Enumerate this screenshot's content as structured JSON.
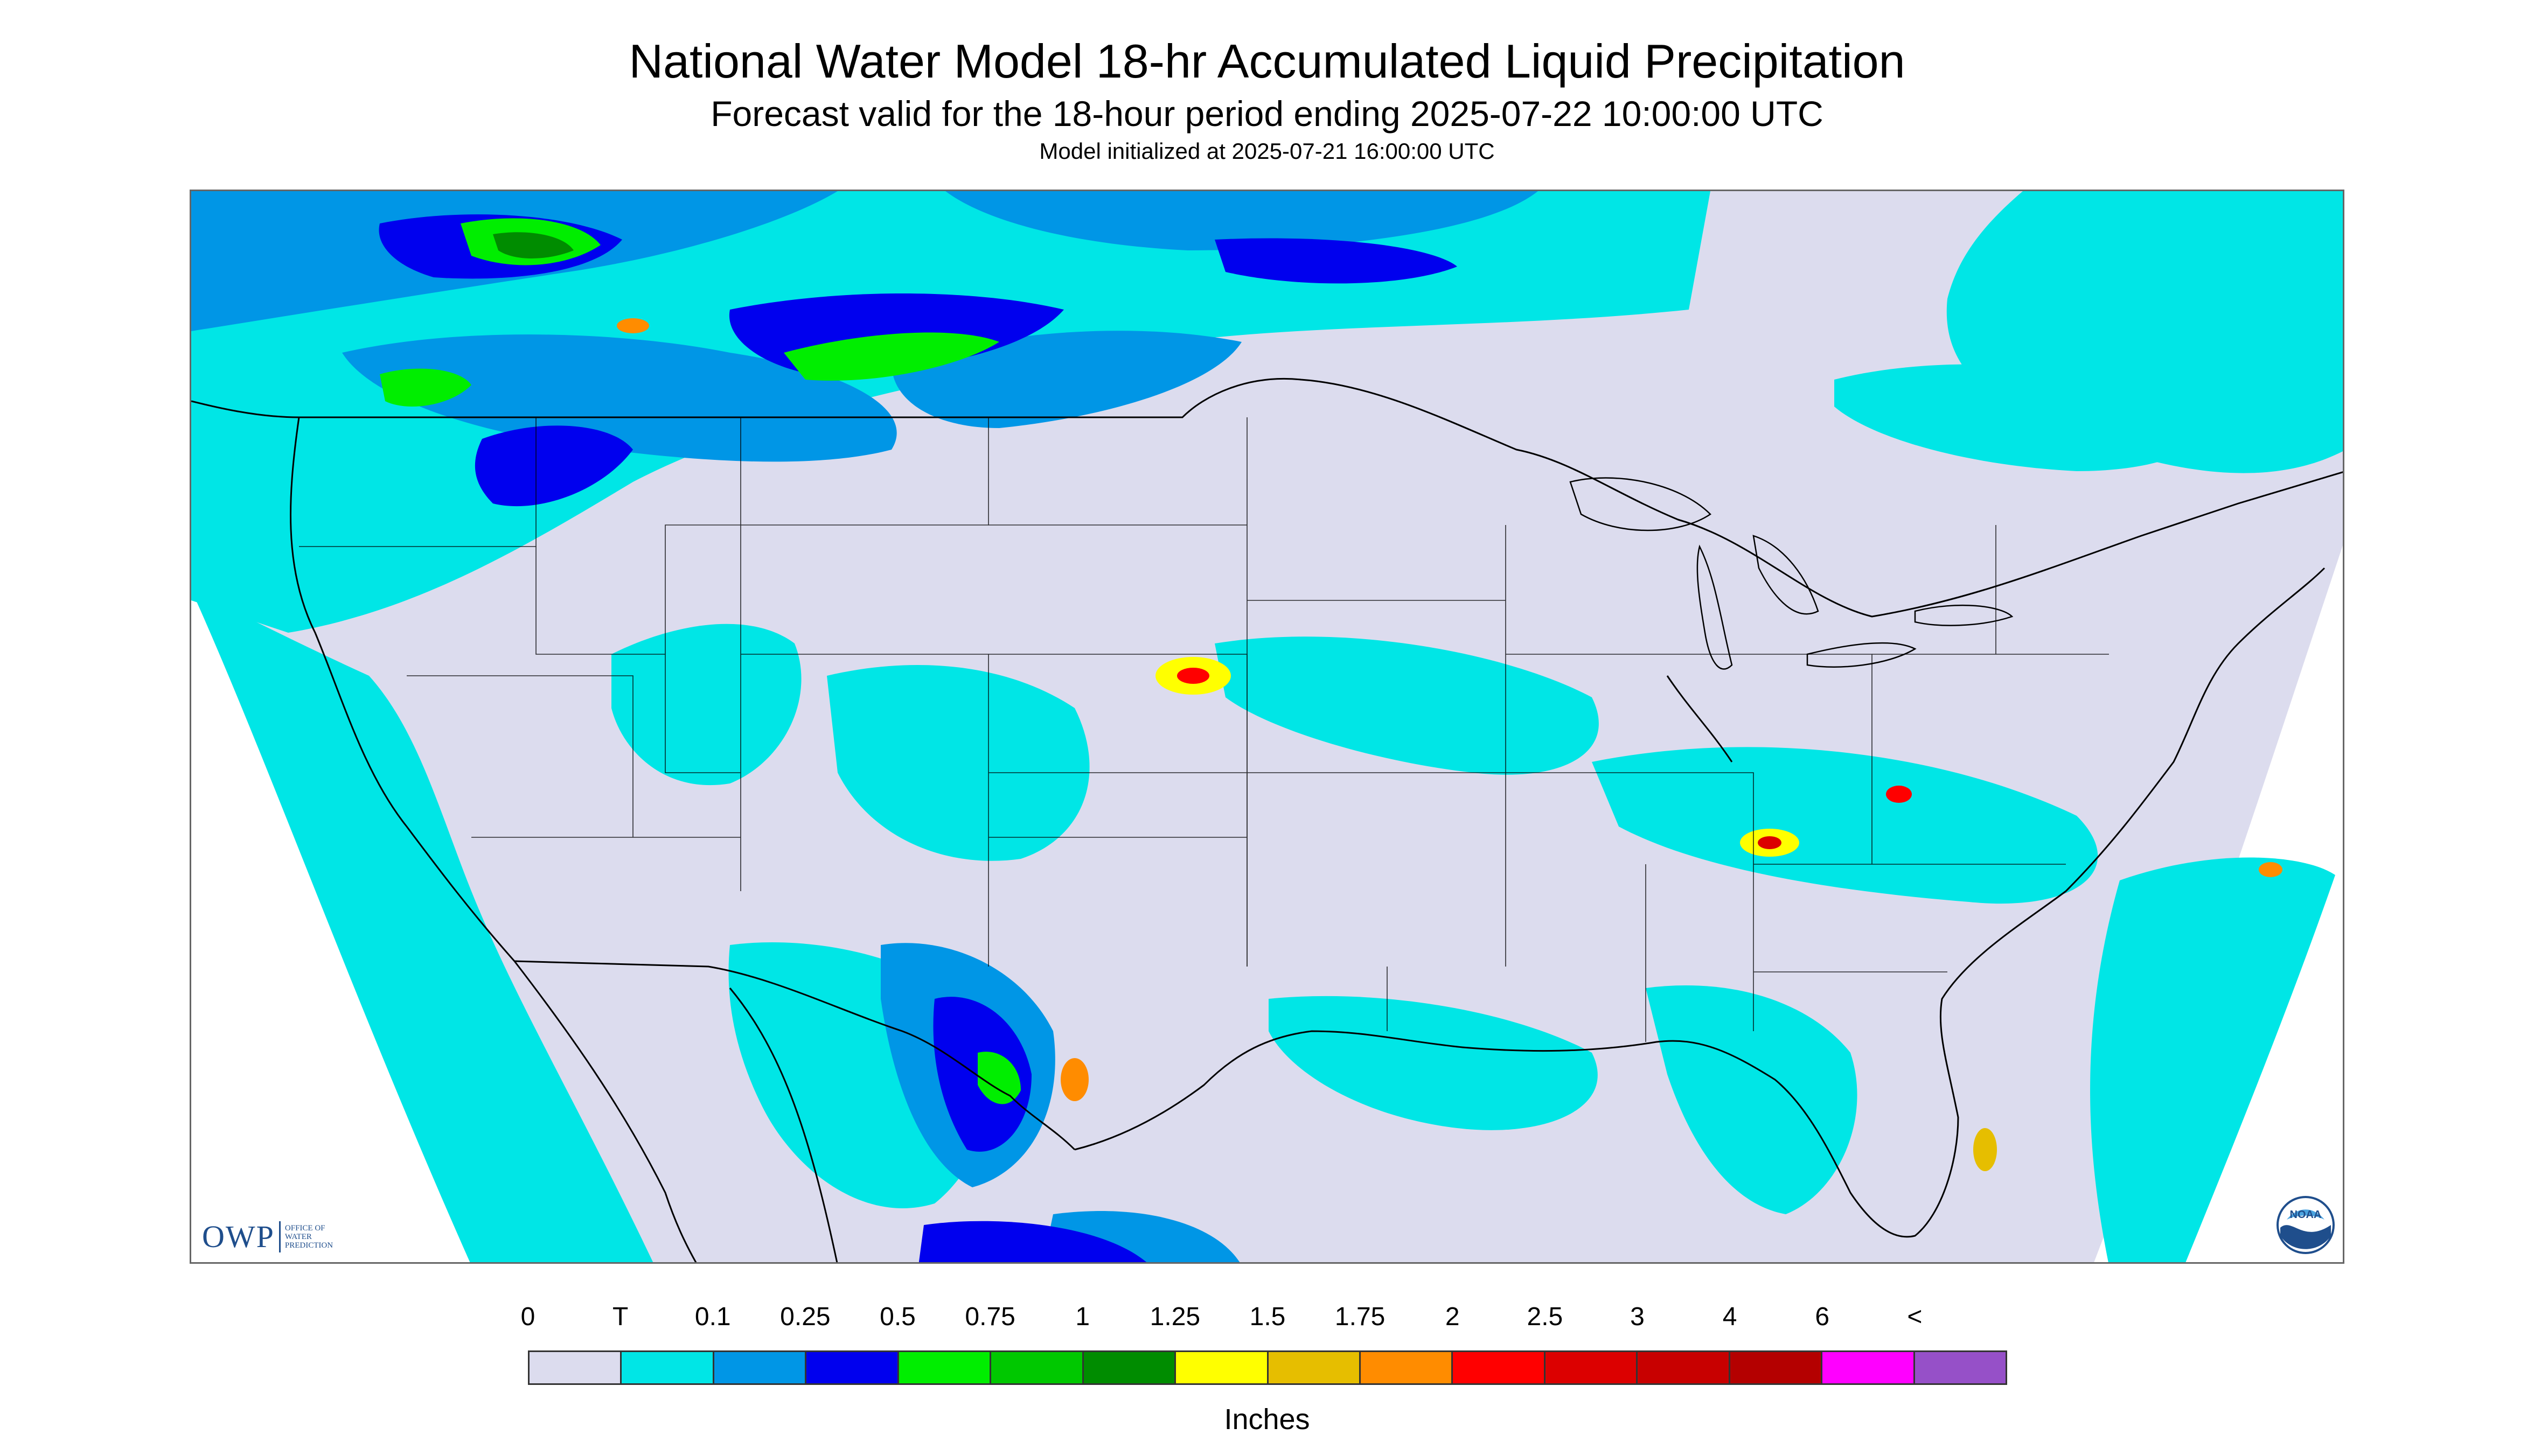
{
  "header": {
    "title": "National Water Model 18-hr Accumulated Liquid Precipitation",
    "subtitle": "Forecast valid for the 18-hour period ending 2025-07-22 10:00:00 UTC",
    "init_line": "Model initialized at 2025-07-21 16:00:00 UTC"
  },
  "map": {
    "region": "Contiguous United States",
    "no_data_color": "#ffffff",
    "background_color": "#dcdcee",
    "boundary_color": "#000000"
  },
  "logos": {
    "owp_text": "OWP",
    "owp_name_lines": [
      "OFFICE OF",
      "WATER",
      "PREDICTION"
    ],
    "noaa_text": "NOAA"
  },
  "legend": {
    "units": "Inches",
    "labels": [
      "0",
      "T",
      "0.1",
      "0.25",
      "0.5",
      "0.75",
      "1",
      "1.25",
      "1.5",
      "1.75",
      "2",
      "2.5",
      "3",
      "4",
      "6",
      "<"
    ],
    "colors": [
      "#dcdcee",
      "#00e6e6",
      "#0096e6",
      "#0000ee",
      "#00ee00",
      "#00c800",
      "#008c00",
      "#ffff00",
      "#e6be00",
      "#ff8c00",
      "#ff0000",
      "#dc0000",
      "#c80000",
      "#b40000",
      "#ff00ff",
      "#9650c8"
    ]
  }
}
